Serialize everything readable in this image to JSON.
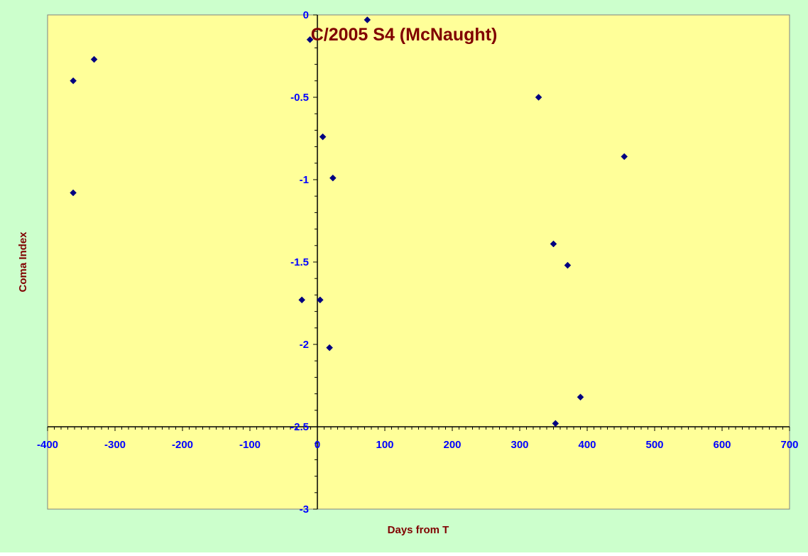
{
  "chart_data": {
    "type": "scatter",
    "title": "C/2005 S4 (McNaught)",
    "xlabel": "Days from T",
    "ylabel": "Coma Index",
    "xlim": [
      -400,
      700
    ],
    "ylim": [
      -3,
      0
    ],
    "x_ticks": [
      "-400",
      "-300",
      "-200",
      "-100",
      "0",
      "100",
      "200",
      "300",
      "400",
      "500",
      "600",
      "700"
    ],
    "y_ticks": [
      "0",
      "-0.5",
      "-1",
      "-1.5",
      "-2",
      "-2.5",
      "-3"
    ],
    "grid": false,
    "legend": "none",
    "series": [
      {
        "points": [
          {
            "x": -362,
            "y": -0.4
          },
          {
            "x": -331,
            "y": -0.27
          },
          {
            "x": -362,
            "y": -1.08
          },
          {
            "x": -11,
            "y": -0.15
          },
          {
            "x": 74,
            "y": -0.03
          },
          {
            "x": 8,
            "y": -0.74
          },
          {
            "x": 23,
            "y": -0.99
          },
          {
            "x": -23,
            "y": -1.73
          },
          {
            "x": 4,
            "y": -1.73
          },
          {
            "x": 18,
            "y": -2.02
          },
          {
            "x": 328,
            "y": -0.5
          },
          {
            "x": 455,
            "y": -0.86
          },
          {
            "x": 350,
            "y": -1.39
          },
          {
            "x": 371,
            "y": -1.52
          },
          {
            "x": 390,
            "y": -2.32
          },
          {
            "x": 353,
            "y": -2.48
          }
        ]
      }
    ],
    "colors": {
      "page_background": "#ccffcc",
      "plot_background": "#ffff99",
      "marker": "#000080",
      "tick_label": "#0000ff",
      "title": "#800000",
      "axis_title": "#800000",
      "axis_line": "#000000"
    }
  }
}
